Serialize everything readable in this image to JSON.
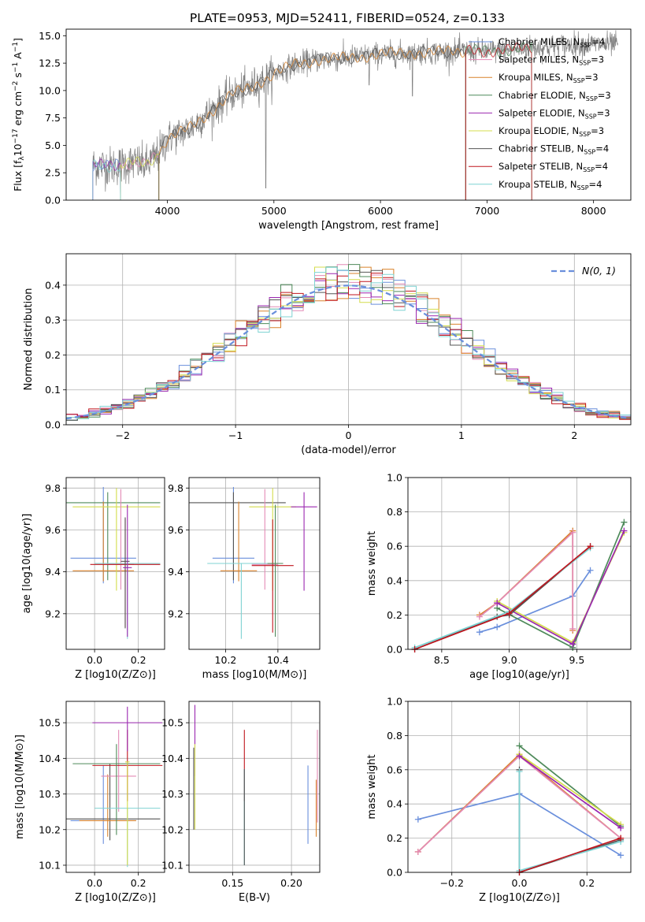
{
  "figure_title": "PLATE=0953, MJD=52411, FIBERID=0524, z=0.133",
  "legend_models": [
    {
      "name": "Chabrier MILES",
      "n": "4",
      "color": "#6a8fdc"
    },
    {
      "name": "Salpeter MILES",
      "n": "3",
      "color": "#e38ab5"
    },
    {
      "name": "Kroupa MILES",
      "n": "3",
      "color": "#d9822b"
    },
    {
      "name": "Chabrier ELODIE",
      "n": "3",
      "color": "#4e8a5a"
    },
    {
      "name": "Salpeter ELODIE",
      "n": "3",
      "color": "#9b27b0"
    },
    {
      "name": "Kroupa ELODIE",
      "n": "3",
      "color": "#d4dc4c"
    },
    {
      "name": "Chabrier STELIB",
      "n": "4",
      "color": "#555555"
    },
    {
      "name": "Salpeter STELIB",
      "n": "4",
      "color": "#c0161e"
    },
    {
      "name": "Kroupa STELIB",
      "n": "4",
      "color": "#7fd3d3"
    }
  ],
  "chart_data": [
    {
      "id": "spectrum",
      "type": "line",
      "xlabel": "wavelength [Angstrom, rest frame]",
      "ylabel_parts": [
        "Flux [f",
        "λ",
        "10",
        "−17",
        " erg cm",
        "−2",
        " s",
        "−1",
        " A",
        "−1",
        "]"
      ],
      "xlim": [
        3050,
        8350
      ],
      "ylim": [
        0,
        15.6
      ],
      "xticks": [
        4000,
        5000,
        6000,
        7000,
        8000
      ],
      "yticks": [
        0.0,
        2.5,
        5.0,
        7.5,
        10.0,
        12.5,
        15.0
      ],
      "ytick_labels": [
        "0.0",
        "2.5",
        "5.0",
        "7.5",
        "10.0",
        "12.5",
        "15.0"
      ],
      "observed_color": "#808080",
      "continuum": [
        [
          3300,
          3.2
        ],
        [
          3500,
          3.1
        ],
        [
          3600,
          3.3
        ],
        [
          3700,
          3.4
        ],
        [
          3800,
          3.2
        ],
        [
          3900,
          4.0
        ],
        [
          3950,
          4.8
        ],
        [
          4000,
          5.6
        ],
        [
          4200,
          6.5
        ],
        [
          4400,
          8.0
        ],
        [
          4600,
          9.6
        ],
        [
          4800,
          10.4
        ],
        [
          5000,
          11.5
        ],
        [
          5200,
          12.4
        ],
        [
          5400,
          12.8
        ],
        [
          5600,
          12.9
        ],
        [
          5800,
          13.1
        ],
        [
          6000,
          13.3
        ],
        [
          6200,
          13.4
        ],
        [
          6400,
          13.5
        ],
        [
          6600,
          13.5
        ],
        [
          6800,
          13.6
        ],
        [
          7000,
          13.6
        ],
        [
          7200,
          13.7
        ],
        [
          7400,
          13.9
        ],
        [
          7600,
          14.0
        ],
        [
          7800,
          14.2
        ],
        [
          8000,
          14.2
        ],
        [
          8200,
          14.2
        ]
      ],
      "model_windows": [
        [
          3300,
          3560
        ],
        [
          3560,
          3920
        ],
        [
          3920,
          6800
        ],
        [
          6800,
          7420
        ]
      ]
    },
    {
      "id": "residuals",
      "type": "histogram",
      "xlabel": "(data-model)/error",
      "ylabel": "Normed distribution",
      "xlim": [
        -2.5,
        2.5
      ],
      "ylim": [
        0,
        0.49
      ],
      "xticks": [
        -2,
        -1,
        0,
        1,
        2
      ],
      "xtick_labels": [
        "−2",
        "−1",
        "0",
        "1",
        "2"
      ],
      "yticks": [
        0.0,
        0.1,
        0.2,
        0.3,
        0.4
      ],
      "ytick_labels": [
        "0.0",
        "0.1",
        "0.2",
        "0.3",
        "0.4"
      ],
      "bin_width": 0.1,
      "normal_label": "N(0, 1)",
      "normal_color": "#6a8fdc"
    },
    {
      "id": "age_vs_Z",
      "type": "errorbar",
      "xlabel": "Z [log10(Z/Z⊙)]",
      "ylabel": "age  [log10(age/yr)]",
      "xlim": [
        -0.13,
        0.32
      ],
      "ylim": [
        9.03,
        9.85
      ],
      "xticks": [
        0.0,
        0.2
      ],
      "xtick_labels": [
        "0.0",
        "0.2"
      ],
      "yticks": [
        9.2,
        9.4,
        9.6,
        9.8
      ],
      "ytick_labels": [
        "9.2",
        "9.4",
        "9.6",
        "9.8"
      ],
      "points": [
        {
          "x": 0.04,
          "xerr": 0.15,
          "y": 9.465,
          "yerr": [
            0.12,
            0.34
          ],
          "color": "#6a8fdc"
        },
        {
          "x": 0.06,
          "xerr": 0.24,
          "y": 9.73,
          "yerr": [
            0.37,
            0.05
          ],
          "color": "#4e8a5a"
        },
        {
          "x": 0.04,
          "xerr": 0.14,
          "y": 9.405,
          "yerr": [
            0.05,
            0.33
          ],
          "color": "#d9822b"
        },
        {
          "x": 0.1,
          "xerr": 0.2,
          "y": 9.71,
          "yerr": [
            0.4,
            0.09
          ],
          "color": "#d4dc4c"
        },
        {
          "x": 0.12,
          "xerr": 0.06,
          "y": 9.435,
          "yerr": [
            0.12,
            0.36
          ],
          "color": "#e38ab5"
        },
        {
          "x": 0.14,
          "xerr": 0.16,
          "y": 9.435,
          "yerr": [
            0.3,
            0.22
          ],
          "color": "#c0161e"
        },
        {
          "x": 0.15,
          "xerr": 0.15,
          "y": 9.44,
          "yerr": [
            0.36,
            0.0
          ],
          "color": "#7fd3d3"
        },
        {
          "x": 0.14,
          "xerr": 0.02,
          "y": 9.45,
          "yerr": [
            0.32,
            0.21
          ],
          "color": "#555555"
        },
        {
          "x": 0.15,
          "xerr": 0.02,
          "y": 9.42,
          "yerr": [
            0.33,
            0.3
          ],
          "color": "#9b27b0"
        }
      ]
    },
    {
      "id": "age_vs_mass",
      "type": "errorbar",
      "xlabel": "mass [log10(M/M⊙)]",
      "ylabel": "",
      "xlim": [
        10.06,
        10.56
      ],
      "ylim": [
        9.03,
        9.85
      ],
      "xticks": [
        10.2,
        10.4
      ],
      "xtick_labels": [
        "10.2",
        "10.4"
      ],
      "yticks": [
        9.2,
        9.4,
        9.6,
        9.8
      ],
      "ytick_labels": [
        "9.2",
        "9.4",
        "9.6",
        "9.8"
      ],
      "points": [
        {
          "x": 10.23,
          "xerr": 0.08,
          "y": 9.465,
          "yerr": [
            0.12,
            0.34
          ],
          "color": "#6a8fdc"
        },
        {
          "x": 10.23,
          "xerr": 0.2,
          "y": 9.73,
          "yerr": [
            0.37,
            0.05
          ],
          "color": "#555555"
        },
        {
          "x": 10.25,
          "xerr": 0.07,
          "y": 9.405,
          "yerr": [
            0.05,
            0.33
          ],
          "color": "#d9822b"
        },
        {
          "x": 10.38,
          "xerr": 0.09,
          "y": 9.71,
          "yerr": [
            0.4,
            0.09
          ],
          "color": "#d4dc4c"
        },
        {
          "x": 10.35,
          "xerr": 0.05,
          "y": 9.435,
          "yerr": [
            0.12,
            0.36
          ],
          "color": "#e38ab5"
        },
        {
          "x": 10.38,
          "xerr": 0.08,
          "y": 9.43,
          "yerr": [
            0.32,
            0.22
          ],
          "color": "#c0161e"
        },
        {
          "x": 10.26,
          "xerr": 0.13,
          "y": 9.44,
          "yerr": [
            0.36,
            0.0
          ],
          "color": "#7fd3d3"
        },
        {
          "x": 10.5,
          "xerr": 0.05,
          "y": 9.71,
          "yerr": [
            0.4,
            0.07
          ],
          "color": "#9b27b0"
        },
        {
          "x": 10.39,
          "xerr": 0.03,
          "y": 9.44,
          "yerr": [
            0.35,
            0.28
          ],
          "color": "#4e8a5a"
        }
      ]
    },
    {
      "id": "weight_vs_age",
      "type": "line",
      "xlabel": "age  [log10(age/yr)]",
      "ylabel": "mass weight",
      "xlim": [
        8.25,
        9.9
      ],
      "ylim": [
        0,
        1.0
      ],
      "xticks": [
        8.5,
        9.0,
        9.5
      ],
      "xtick_labels": [
        "8.5",
        "9.0",
        "9.5"
      ],
      "yticks": [
        0.0,
        0.2,
        0.4,
        0.6,
        0.8,
        1.0
      ],
      "ytick_labels": [
        "0.0",
        "0.2",
        "0.4",
        "0.6",
        "0.8",
        "1.0"
      ],
      "series": [
        {
          "color": "#6a8fdc",
          "points": [
            [
              8.78,
              0.1
            ],
            [
              8.91,
              0.13
            ],
            [
              9.47,
              0.31
            ],
            [
              9.6,
              0.46
            ]
          ]
        },
        {
          "color": "#d9822b",
          "points": [
            [
              8.78,
              0.2
            ],
            [
              8.91,
              0.27
            ],
            [
              9.47,
              0.69
            ],
            [
              9.47,
              0.11
            ]
          ]
        },
        {
          "color": "#e38ab5",
          "points": [
            [
              8.78,
              0.19
            ],
            [
              8.91,
              0.27
            ],
            [
              9.47,
              0.68
            ],
            [
              9.47,
              0.12
            ]
          ]
        },
        {
          "color": "#4e8a5a",
          "points": [
            [
              8.91,
              0.24
            ],
            [
              9.47,
              0.01
            ],
            [
              9.85,
              0.74
            ]
          ]
        },
        {
          "color": "#d4dc4c",
          "points": [
            [
              8.91,
              0.28
            ],
            [
              9.47,
              0.04
            ],
            [
              9.85,
              0.68
            ]
          ]
        },
        {
          "color": "#9b27b0",
          "points": [
            [
              8.91,
              0.27
            ],
            [
              9.47,
              0.03
            ],
            [
              9.85,
              0.69
            ]
          ]
        },
        {
          "color": "#555555",
          "points": [
            [
              8.3,
              0.0
            ],
            [
              8.91,
              0.19
            ],
            [
              9.0,
              0.2
            ],
            [
              9.6,
              0.6
            ]
          ]
        },
        {
          "color": "#7fd3d3",
          "points": [
            [
              8.3,
              0.01
            ],
            [
              9.0,
              0.22
            ],
            [
              9.6,
              0.59
            ]
          ]
        },
        {
          "color": "#c0161e",
          "points": [
            [
              8.3,
              0.0
            ],
            [
              9.0,
              0.21
            ],
            [
              9.6,
              0.6
            ]
          ]
        }
      ]
    },
    {
      "id": "mass_vs_Z",
      "type": "errorbar",
      "xlabel": "Z [log10(Z/Z⊙)]",
      "ylabel": "mass [log10(M/M⊙)]",
      "xlim": [
        -0.13,
        0.32
      ],
      "ylim": [
        10.08,
        10.56
      ],
      "xticks": [
        0.0,
        0.2
      ],
      "xtick_labels": [
        "0.0",
        "0.2"
      ],
      "yticks": [
        10.1,
        10.2,
        10.3,
        10.4,
        10.5
      ],
      "ytick_labels": [
        "10.1",
        "10.2",
        "10.3",
        "10.4",
        "10.5"
      ],
      "points": [
        {
          "x": 0.04,
          "xerr": 0.15,
          "y": 10.225,
          "yerr": [
            0.065,
            0.155
          ],
          "color": "#6a8fdc"
        },
        {
          "x": 0.07,
          "xerr": 0.23,
          "y": 10.23,
          "yerr": [
            0.06,
            0.155
          ],
          "color": "#555555"
        },
        {
          "x": 0.06,
          "xerr": 0.13,
          "y": 10.225,
          "yerr": [
            0.045,
            0.13
          ],
          "color": "#d9822b"
        },
        {
          "x": 0.11,
          "xerr": 0.08,
          "y": 10.35,
          "yerr": [
            0.1,
            0.13
          ],
          "color": "#e38ab5"
        },
        {
          "x": 0.15,
          "xerr": 0.16,
          "y": 10.38,
          "yerr": [
            0.1,
            0.1
          ],
          "color": "#c0161e"
        },
        {
          "x": 0.1,
          "xerr": 0.2,
          "y": 10.385,
          "yerr": [
            0.2,
            0.055
          ],
          "color": "#4e8a5a"
        },
        {
          "x": 0.15,
          "xerr": 0.15,
          "y": 10.26,
          "yerr": [
            0.165,
            0.0
          ],
          "color": "#7fd3d3"
        },
        {
          "x": 0.15,
          "xerr": 0.16,
          "y": 10.5,
          "yerr": [
            0.08,
            0.045
          ],
          "color": "#9b27b0"
        },
        {
          "x": 0.15,
          "xerr": 0.01,
          "y": 10.39,
          "yerr": [
            0.29,
            0.0
          ],
          "color": "#d4dc4c"
        }
      ]
    },
    {
      "id": "mass_vs_ebv",
      "type": "errorbar",
      "xlabel": "E(B-V)",
      "ylabel": "",
      "xlim": [
        0.113,
        0.224
      ],
      "ylim": [
        10.08,
        10.56
      ],
      "xticks": [
        0.15,
        0.2
      ],
      "xtick_labels": [
        "0.15",
        "0.20"
      ],
      "yticks": [
        10.1,
        10.2,
        10.3,
        10.4,
        10.5
      ],
      "ytick_labels": [
        "10.1",
        "10.2",
        "10.3",
        "10.4",
        "10.5"
      ],
      "points": [
        {
          "x": 0.117,
          "xerr": 0,
          "y": 10.33,
          "yerr": [
            0.13,
            0.1
          ],
          "color": "#555555"
        },
        {
          "x": 0.118,
          "xerr": 0,
          "y": 10.45,
          "yerr": [
            0.1,
            0.1
          ],
          "color": "#9b27b0"
        },
        {
          "x": 0.118,
          "xerr": 0,
          "y": 10.32,
          "yerr": [
            0.12,
            0.12
          ],
          "color": "#d4dc4c"
        },
        {
          "x": 0.16,
          "xerr": 0,
          "y": 10.38,
          "yerr": [
            0.1,
            0.1
          ],
          "color": "#c0161e"
        },
        {
          "x": 0.16,
          "xerr": 0,
          "y": 10.26,
          "yerr": [
            0.16,
            0.11
          ],
          "color": "#7fd3d3"
        },
        {
          "x": 0.16,
          "xerr": 0,
          "y": 10.25,
          "yerr": [
            0.15,
            0.12
          ],
          "color": "#555555"
        },
        {
          "x": 0.214,
          "xerr": 0,
          "y": 10.27,
          "yerr": [
            0.11,
            0.11
          ],
          "color": "#6a8fdc"
        },
        {
          "x": 0.221,
          "xerr": 0,
          "y": 10.26,
          "yerr": [
            0.08,
            0.08
          ],
          "color": "#d9822b"
        },
        {
          "x": 0.222,
          "xerr": 0,
          "y": 10.35,
          "yerr": [
            0.13,
            0.13
          ],
          "color": "#e38ab5"
        }
      ]
    },
    {
      "id": "weight_vs_Z",
      "type": "line",
      "xlabel": "Z [log10(Z/Z⊙)]",
      "ylabel": "mass weight",
      "xlim": [
        -0.33,
        0.33
      ],
      "ylim": [
        0,
        1.0
      ],
      "xticks": [
        -0.2,
        0.0,
        0.2
      ],
      "xtick_labels": [
        "−0.2",
        "0.0",
        "0.2"
      ],
      "yticks": [
        0.0,
        0.2,
        0.4,
        0.6,
        0.8,
        1.0
      ],
      "ytick_labels": [
        "0.0",
        "0.2",
        "0.4",
        "0.6",
        "0.8",
        "1.0"
      ],
      "series": [
        {
          "color": "#6a8fdc",
          "points": [
            [
              -0.3,
              0.31
            ],
            [
              0.0,
              0.46
            ],
            [
              0.3,
              0.1
            ]
          ]
        },
        {
          "color": "#d9822b",
          "points": [
            [
              -0.3,
              0.12
            ],
            [
              0.0,
              0.69
            ],
            [
              0.3,
              0.2
            ]
          ]
        },
        {
          "color": "#e38ab5",
          "points": [
            [
              -0.3,
              0.12
            ],
            [
              0.0,
              0.68
            ],
            [
              0.3,
              0.2
            ]
          ]
        },
        {
          "color": "#4e8a5a",
          "points": [
            [
              0.0,
              0.74
            ],
            [
              0.3,
              0.27
            ]
          ]
        },
        {
          "color": "#d4dc4c",
          "points": [
            [
              0.0,
              0.69
            ],
            [
              0.3,
              0.28
            ]
          ]
        },
        {
          "color": "#9b27b0",
          "points": [
            [
              0.0,
              0.68
            ],
            [
              0.3,
              0.26
            ]
          ]
        },
        {
          "color": "#555555",
          "points": [
            [
              0.0,
              0.6
            ],
            [
              0.0,
              0.0
            ],
            [
              0.3,
              0.19
            ]
          ]
        },
        {
          "color": "#7fd3d3",
          "points": [
            [
              0.0,
              0.59
            ],
            [
              0.0,
              0.01
            ],
            [
              0.3,
              0.18
            ]
          ]
        },
        {
          "color": "#c0161e",
          "points": [
            [
              0.0,
              0.0
            ],
            [
              0.3,
              0.2
            ]
          ]
        }
      ]
    }
  ]
}
